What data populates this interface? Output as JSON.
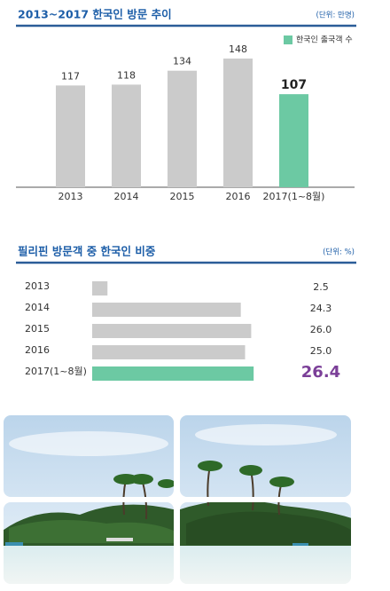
{
  "chart_data": [
    {
      "type": "bar",
      "title": "2013~2017 한국인 방문 추이",
      "unit": "(단위: 만명)",
      "legend_label": "한국인 출국객 수",
      "legend_color": "#6cc9a3",
      "categories": [
        "2013",
        "2014",
        "2015",
        "2016",
        "2017(1~8월)"
      ],
      "values": [
        117,
        118,
        134,
        148,
        107
      ],
      "colors": [
        "#cbcbcb",
        "#cbcbcb",
        "#cbcbcb",
        "#cbcbcb",
        "#6cc9a3"
      ]
    },
    {
      "type": "hbar",
      "title": "필리핀 방문객 중 한국인 비중",
      "unit": "(단위: %)",
      "highlight_color": "#6cc9a3",
      "highlight_label_color": "#7b3f98",
      "categories": [
        "2013",
        "2014",
        "2015",
        "2016",
        "2017(1~8월)"
      ],
      "values": [
        2.5,
        24.3,
        26.0,
        25.0,
        26.4
      ],
      "value_labels": [
        "2.5",
        "24.3",
        "26.0",
        "25.0",
        "26.4"
      ],
      "colors": [
        "#cbcbcb",
        "#cbcbcb",
        "#cbcbcb",
        "#cbcbcb",
        "#6cc9a3"
      ]
    }
  ]
}
